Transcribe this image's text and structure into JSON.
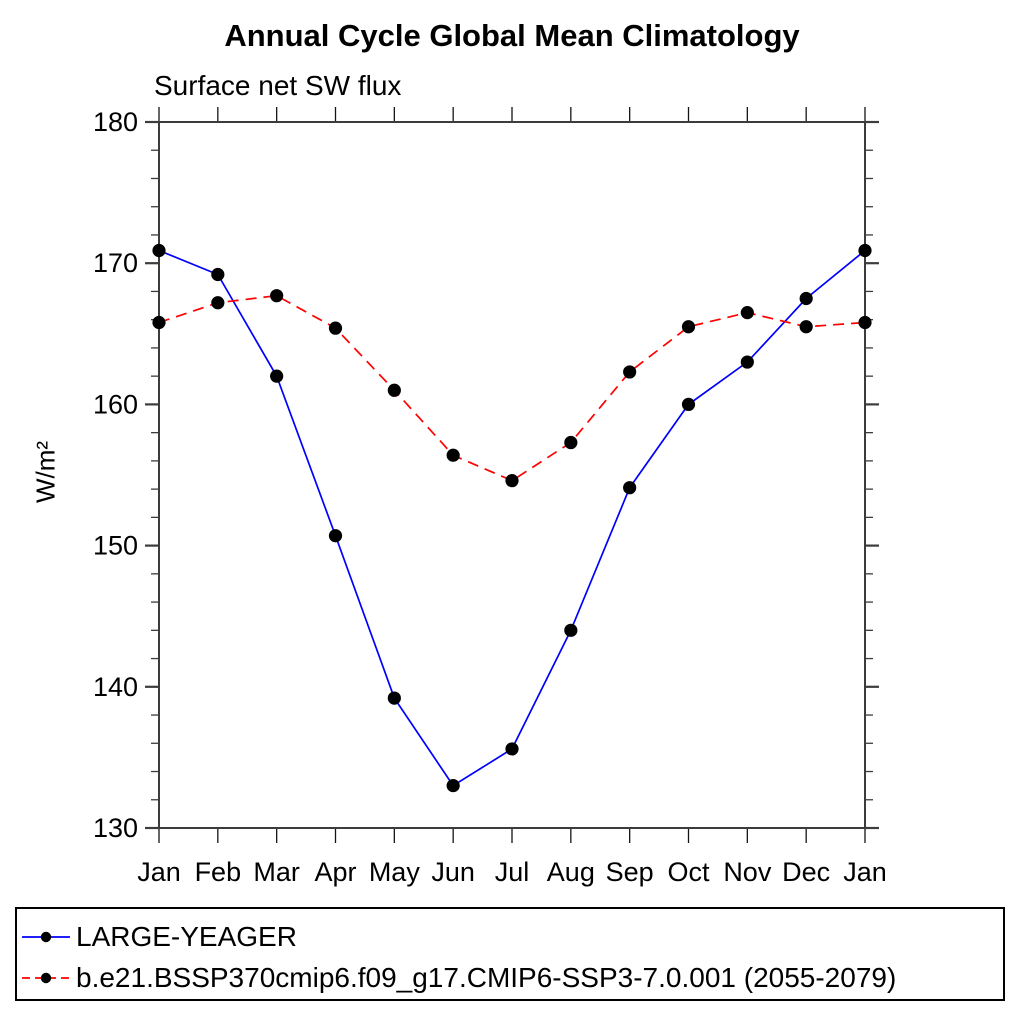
{
  "title": "Annual Cycle Global Mean Climatology",
  "subtitle": "Surface net SW flux",
  "ylabel": "W/m²",
  "chart_data": {
    "type": "line",
    "title": "Annual Cycle Global Mean Climatology",
    "subtitle": "Surface net SW flux",
    "xlabel": "",
    "ylabel": "W/m²",
    "categories": [
      "Jan",
      "Feb",
      "Mar",
      "Apr",
      "May",
      "Jun",
      "Jul",
      "Aug",
      "Sep",
      "Oct",
      "Nov",
      "Dec",
      "Jan"
    ],
    "series": [
      {
        "name": "LARGE-YEAGER",
        "color": "#0000ff",
        "line_style": "solid",
        "dash": "",
        "marker": "filled-circle",
        "marker_color": "#000000",
        "values": [
          170.9,
          169.2,
          162.0,
          150.7,
          139.2,
          133.0,
          135.6,
          144.0,
          154.1,
          160.0,
          163.0,
          167.5,
          170.9
        ]
      },
      {
        "name": "b.e21.BSSP370cmip6.f09_g17.CMIP6-SSP3-7.0.001 (2055-2079)",
        "color": "#ff0000",
        "line_style": "dashed",
        "dash": "11,7",
        "marker": "filled-circle",
        "marker_color": "#000000",
        "values": [
          165.8,
          167.2,
          167.7,
          165.4,
          161.0,
          156.4,
          154.6,
          157.3,
          162.3,
          165.5,
          166.5,
          165.5,
          165.8
        ]
      }
    ],
    "ylim": [
      130,
      180
    ],
    "yticks_major": [
      130,
      140,
      150,
      160,
      170,
      180
    ],
    "ytick_minor_step": 2,
    "grid": false,
    "legend_position": "bottom",
    "axis_color": "#3c3c3c",
    "tick_color": "#141414"
  }
}
